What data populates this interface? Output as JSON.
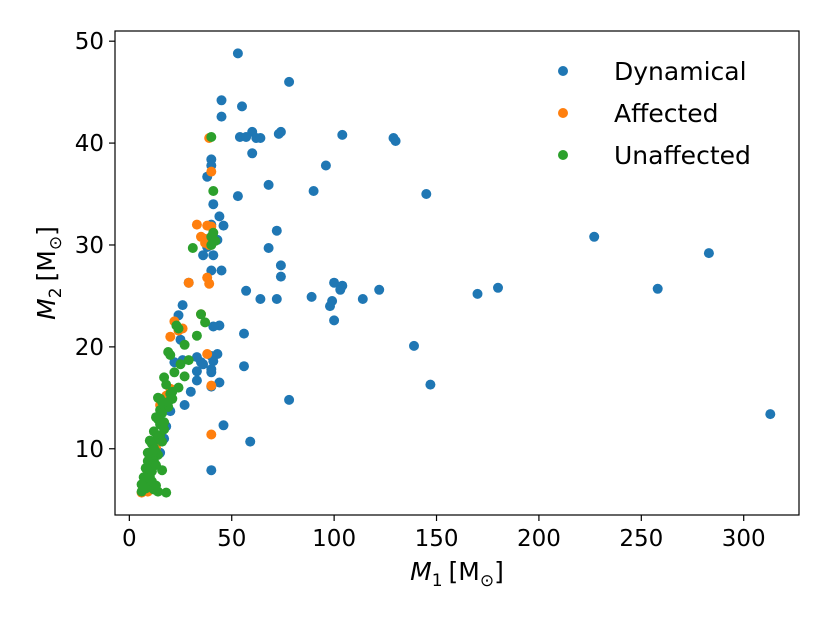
{
  "chart_data": {
    "type": "scatter",
    "title": "",
    "xlabel": {
      "var": "M",
      "sub": "1",
      "unit": "M",
      "unit_sub": "⊙"
    },
    "ylabel": {
      "var": "M",
      "sub": "2",
      "unit": "M",
      "unit_sub": "⊙"
    },
    "xlim": [
      -7,
      327
    ],
    "ylim": [
      3.5,
      51
    ],
    "xticks": [
      0,
      50,
      100,
      150,
      200,
      250,
      300
    ],
    "yticks": [
      10,
      20,
      30,
      40,
      50
    ],
    "grid": false,
    "legend_position": "top-right",
    "series": [
      {
        "name": "Dynamical",
        "color": "#1f77b4",
        "x": [
          53,
          78,
          45,
          55,
          45,
          60,
          62,
          64,
          54,
          73,
          57,
          74,
          104,
          129,
          130,
          60,
          96,
          40,
          40,
          38,
          68,
          90,
          145,
          53,
          41,
          44,
          46,
          40,
          43,
          38,
          72,
          227,
          283,
          36,
          41,
          68,
          45,
          40,
          74,
          29,
          74,
          57,
          258,
          170,
          180,
          122,
          114,
          100,
          104,
          103,
          89,
          64,
          72,
          99,
          98,
          100,
          44,
          41,
          56,
          43,
          26,
          139,
          147,
          35,
          40,
          36,
          41,
          40,
          40,
          33,
          30,
          27,
          33,
          56,
          44,
          33,
          25,
          24,
          26,
          78,
          40,
          46,
          59,
          313,
          40,
          17,
          15,
          18,
          20,
          22
        ],
        "y": [
          48.8,
          46,
          44.2,
          43.6,
          42.6,
          41.1,
          40.5,
          40.5,
          40.6,
          40.9,
          40.6,
          41.1,
          40.8,
          40.5,
          40.2,
          39,
          37.8,
          38.4,
          37.8,
          36.7,
          35.9,
          35.3,
          35,
          34.8,
          34,
          32.8,
          31.9,
          32,
          30.5,
          29.8,
          31.4,
          30.8,
          29.2,
          29,
          29,
          29.7,
          27.5,
          27.5,
          28,
          26.3,
          26.9,
          25.5,
          25.7,
          25.2,
          25.8,
          25.6,
          24.7,
          26.3,
          26,
          25.6,
          24.9,
          24.7,
          24.7,
          24.5,
          24,
          22.6,
          22.1,
          22,
          21.3,
          19.3,
          18.7,
          20.1,
          16.3,
          18.5,
          19.1,
          18.3,
          18.6,
          17.8,
          17.5,
          17.6,
          15.6,
          14.3,
          16.7,
          18.1,
          16.5,
          19,
          20.7,
          23.1,
          24.1,
          14.8,
          16.1,
          12.3,
          10.7,
          13.4,
          7.9,
          11,
          9.6,
          12.2,
          13.7,
          18.5
        ]
      },
      {
        "name": "Affected",
        "color": "#ff7f0e",
        "x": [
          39,
          40,
          33,
          38,
          35,
          40,
          37,
          39,
          38,
          39,
          29,
          22,
          24,
          26,
          20,
          38,
          20,
          40,
          18,
          15,
          13,
          8,
          6,
          9,
          7,
          35,
          37
        ],
        "y": [
          40.5,
          37.2,
          32,
          31.9,
          30.8,
          31.8,
          30.6,
          30,
          26.8,
          26.2,
          26.3,
          22.5,
          21.6,
          21.8,
          21,
          19.3,
          15.9,
          16.2,
          15.2,
          14.3,
          10.1,
          6.5,
          5.7,
          5.8,
          6,
          23.2,
          30.2
        ],
        "extra": {
          "x": [
            40
          ],
          "y": [
            11.4
          ]
        }
      },
      {
        "name": "Unaffected",
        "color": "#2ca02c",
        "x": [
          40,
          41,
          40,
          42,
          41,
          40,
          31,
          35,
          37,
          33,
          23,
          24,
          25,
          20,
          19,
          22,
          27,
          29,
          18,
          20,
          21,
          17,
          19,
          16,
          15,
          14,
          16,
          14,
          15,
          13,
          12,
          15,
          17,
          13,
          14,
          11,
          12,
          10,
          13,
          14,
          11,
          12,
          10,
          9,
          11,
          12,
          10,
          8,
          9,
          10,
          11,
          8,
          9,
          7,
          8,
          6,
          7,
          6,
          8,
          12,
          14,
          18,
          13,
          11,
          10,
          16,
          16,
          17,
          19,
          15,
          12,
          13,
          9,
          21,
          24,
          27
        ],
        "y": [
          40.6,
          35.3,
          30.8,
          30.4,
          31.2,
          30,
          29.7,
          23.2,
          22.4,
          21.1,
          22.1,
          21.8,
          18.3,
          19.2,
          19.5,
          17.5,
          17.1,
          18.7,
          16.3,
          15.4,
          15.6,
          17,
          14.1,
          14.6,
          13.8,
          15,
          13.5,
          12.9,
          12.4,
          13.1,
          11.7,
          11.3,
          12.6,
          10.9,
          11.1,
          10.5,
          10.1,
          10.8,
          9.7,
          9.4,
          9.2,
          8.8,
          9.3,
          8.8,
          8.3,
          8.5,
          7.9,
          8.1,
          7.5,
          7.3,
          7.8,
          6.9,
          6.5,
          7.2,
          6.3,
          5.8,
          6.2,
          6.5,
          6.1,
          6,
          5.8,
          5.7,
          6.4,
          6.8,
          7.1,
          7.9,
          10.7,
          11.9,
          14.6,
          14.9,
          9.9,
          8.4,
          9.6,
          14.9,
          16,
          20.2
        ]
      }
    ]
  }
}
